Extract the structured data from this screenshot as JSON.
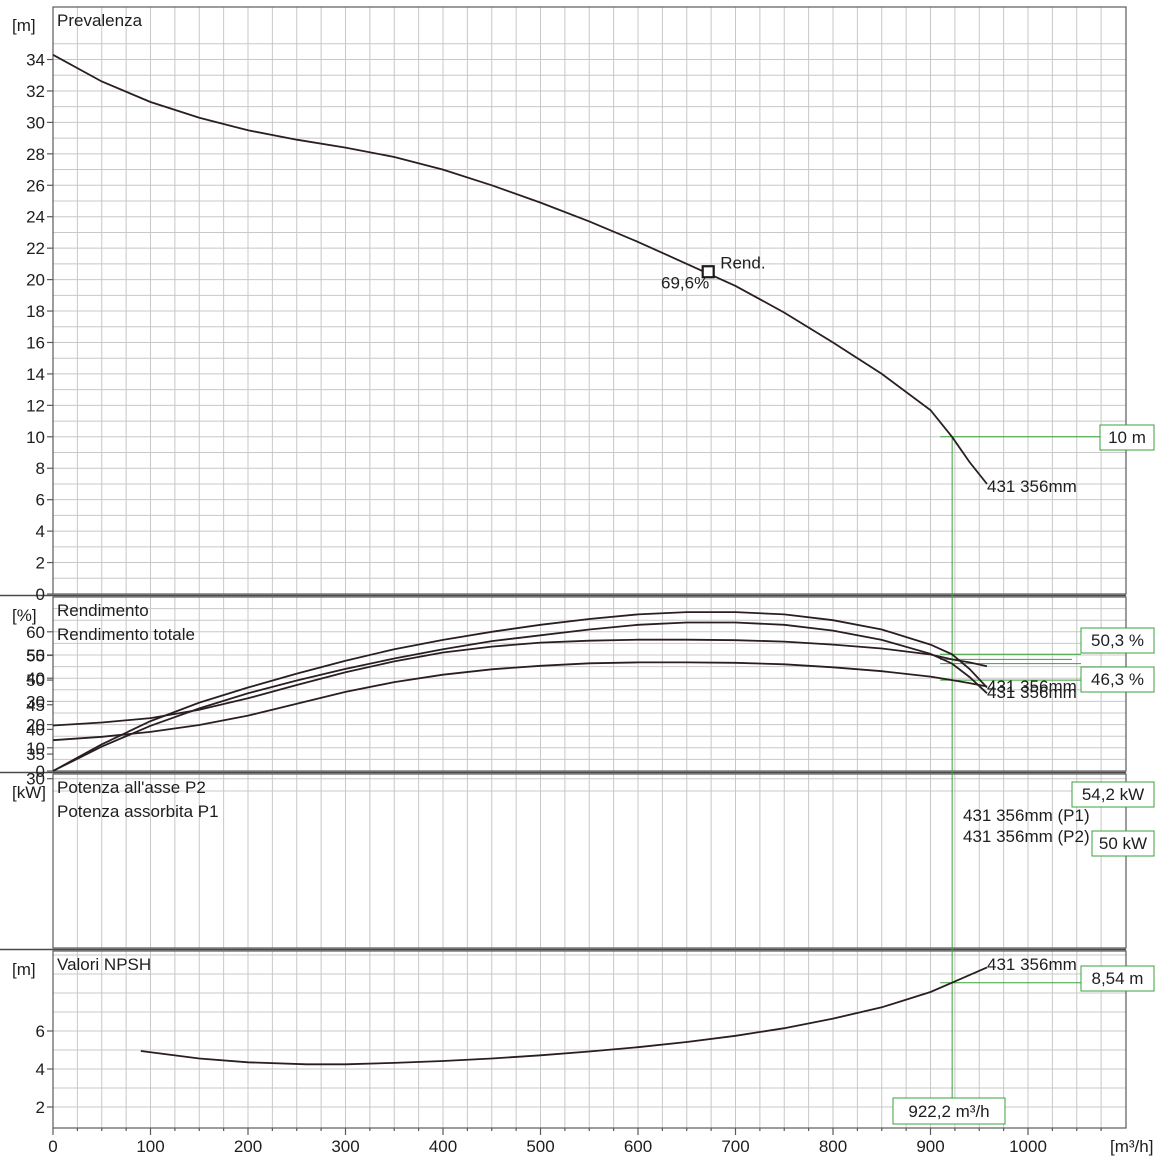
{
  "chart_data": {
    "type": "line",
    "x_unit_label": "[m³/h]",
    "x_ticks": [
      "0",
      "100",
      "200",
      "300",
      "400",
      "500",
      "600",
      "700",
      "800",
      "900",
      "1000"
    ],
    "xlim": [
      0,
      1100
    ],
    "operating_flow_label": "922,2 m³/h",
    "operating_flow": 922.2,
    "panels": [
      {
        "title_lines": [
          "Prevalenza"
        ],
        "unit_label": "[m]",
        "y_ticks": [
          "0",
          "2",
          "4",
          "6",
          "8",
          "10",
          "12",
          "14",
          "16",
          "18",
          "20",
          "22",
          "24",
          "26",
          "28",
          "30",
          "32",
          "34"
        ],
        "ylim": [
          0,
          35
        ],
        "series": [
          {
            "name": "431 356mm",
            "x": [
              0,
              50,
              100,
              150,
              200,
              250,
              300,
              350,
              400,
              450,
              500,
              550,
              600,
              650,
              700,
              750,
              800,
              850,
              900,
              922,
              940,
              958
            ],
            "y": [
              34.3,
              32.6,
              31.3,
              30.3,
              29.5,
              28.9,
              28.4,
              27.8,
              27.0,
              26.0,
              24.9,
              23.7,
              22.4,
              21.0,
              19.6,
              17.9,
              16.0,
              14.0,
              11.7,
              10.0,
              8.4,
              7.0
            ]
          }
        ],
        "annotations": {
          "bep_label": "Rend.",
          "bep_value": "69,6%",
          "bep_x": 672,
          "bep_y": 20.5,
          "operating_value_label": "10 m",
          "operating_value": 10
        }
      },
      {
        "title_lines": [
          "Rendimento",
          "Rendimento totale"
        ],
        "unit_label": "[%]",
        "y_ticks": [
          "0",
          "10",
          "20",
          "30",
          "40",
          "50",
          "60"
        ],
        "ylim": [
          0,
          71
        ],
        "series": [
          {
            "name": "431 356mm",
            "x": [
              0,
              50,
              100,
              150,
              200,
              250,
              300,
              350,
              400,
              450,
              500,
              550,
              600,
              650,
              700,
              750,
              800,
              850,
              900,
              922,
              940,
              958
            ],
            "y": [
              0,
              11.5,
              21.5,
              29.5,
              36.0,
              42.0,
              47.5,
              52.5,
              56.5,
              60.0,
              63.0,
              65.5,
              67.5,
              68.5,
              68.5,
              67.5,
              65.0,
              61.0,
              54.5,
              50.3,
              44.0,
              36.0
            ]
          },
          {
            "name": "431 356mm",
            "x": [
              0,
              50,
              100,
              150,
              200,
              250,
              300,
              350,
              400,
              450,
              500,
              550,
              600,
              650,
              700,
              750,
              800,
              850,
              900,
              922,
              940,
              958
            ],
            "y": [
              0,
              10.5,
              19.5,
              27.0,
              33.5,
              39.0,
              44.0,
              48.5,
              52.5,
              56.0,
              58.5,
              61.0,
              63.0,
              64.0,
              64.0,
              63.0,
              60.5,
              56.5,
              50.5,
              46.3,
              40.5,
              33.5
            ]
          }
        ],
        "annotations": [
          {
            "label": "50,3 %",
            "value": 50.3
          },
          {
            "label": "46,3 %",
            "value": 46.3
          }
        ]
      },
      {
        "title_lines": [
          "Potenza all'asse P2",
          "Potenza assorbita P1"
        ],
        "unit_label": "[kW]",
        "y_ticks": [
          "30",
          "35",
          "40",
          "45",
          "50",
          "55"
        ],
        "ylim": [
          25,
          60
        ],
        "series": [
          {
            "name": "431 356mm (P1)",
            "x": [
              0,
              50,
              100,
              150,
              200,
              250,
              300,
              350,
              400,
              450,
              500,
              550,
              600,
              650,
              700,
              750,
              800,
              850,
              900,
              922,
              940,
              958
            ],
            "y": [
              40.8,
              41.4,
              42.3,
              44.0,
              46.3,
              49.0,
              51.6,
              53.8,
              55.6,
              56.8,
              57.6,
              58.0,
              58.2,
              58.2,
              58.1,
              57.8,
              57.2,
              56.4,
              55.2,
              54.2,
              53.6,
              52.8
            ]
          },
          {
            "name": "431 356mm (P2)",
            "x": [
              0,
              50,
              100,
              150,
              200,
              250,
              300,
              350,
              400,
              450,
              500,
              550,
              600,
              650,
              700,
              750,
              800,
              850,
              900,
              922,
              940,
              958
            ],
            "y": [
              37.8,
              38.5,
              39.5,
              40.9,
              42.8,
              45.2,
              47.6,
              49.6,
              51.1,
              52.2,
              52.9,
              53.4,
              53.6,
              53.6,
              53.5,
              53.2,
              52.6,
              51.8,
              50.7,
              50.0,
              49.4,
              48.7
            ]
          }
        ],
        "annotations": [
          {
            "label": "54,2 kW",
            "value": 54.2
          },
          {
            "label": "50 kW",
            "value": 50
          }
        ]
      },
      {
        "title_lines": [
          "Valori NPSH"
        ],
        "unit_label": "[m]",
        "y_ticks": [
          "2",
          "4",
          "6"
        ],
        "ylim": [
          1,
          10.2
        ],
        "series": [
          {
            "name": "431 356mm",
            "x": [
              90,
              150,
              200,
              260,
              300,
              350,
              400,
              450,
              500,
              550,
              600,
              650,
              700,
              750,
              800,
              850,
              900,
              922,
              958
            ],
            "y": [
              4.95,
              4.55,
              4.35,
              4.25,
              4.25,
              4.32,
              4.42,
              4.55,
              4.72,
              4.92,
              5.15,
              5.42,
              5.75,
              6.15,
              6.65,
              7.25,
              8.05,
              8.54,
              9.35
            ]
          }
        ],
        "annotations": [
          {
            "label": "8,54 m",
            "value": 8.54
          }
        ]
      }
    ]
  }
}
